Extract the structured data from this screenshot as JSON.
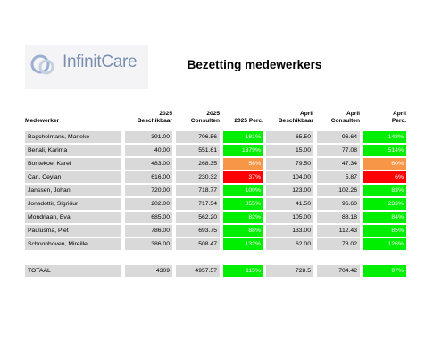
{
  "header": {
    "logo": "InfinitCare",
    "title": "Bezetting medewerkers"
  },
  "table": {
    "columns": [
      "Medewerker",
      "2025\nBeschikbaar",
      "2025\nConsulten",
      "2025 Perc.",
      "April\nBeschikbaar",
      "April\nConsulten",
      "April\nPerc."
    ],
    "rows": [
      [
        "Bagchelmans, Marieke",
        "391.00",
        "706.56",
        "181%",
        "65.50",
        "96.64",
        "148%"
      ],
      [
        "Benali, Karima",
        "40.00",
        "551.61",
        "1379%",
        "15.00",
        "77.08",
        "514%"
      ],
      [
        "Bontekoe, Karel",
        "483.00",
        "268.35",
        "56%",
        "79.50",
        "47.34",
        "60%"
      ],
      [
        "Can, Ceylan",
        "616.00",
        "230.32",
        "37%",
        "104.00",
        "5.87",
        "6%"
      ],
      [
        "Janssen, Johan",
        "720.00",
        "718.77",
        "100%",
        "123.00",
        "102.26",
        "83%"
      ],
      [
        "Jonsdottir, Sigriður",
        "202.00",
        "717.54",
        "355%",
        "41.50",
        "96.60",
        "233%"
      ],
      [
        "Mondriaan, Eva",
        "685.00",
        "562.20",
        "82%",
        "105.00",
        "88.18",
        "84%"
      ],
      [
        "Paulusma, Piet",
        "786.00",
        "693.75",
        "88%",
        "133.00",
        "112.43",
        "85%"
      ],
      [
        "Schoonhoven, Mireille",
        "386.00",
        "508.47",
        "132%",
        "62.00",
        "78.02",
        "126%"
      ]
    ],
    "row_colors": [
      [
        "#00ee00",
        "#00ee00"
      ],
      [
        "#00ee00",
        "#00ee00"
      ],
      [
        "#f79646",
        "#f79646"
      ],
      [
        "#ff0000",
        "#ff0000"
      ],
      [
        "#00ee00",
        "#00ee00"
      ],
      [
        "#00ee00",
        "#00ee00"
      ],
      [
        "#00ee00",
        "#00ee00"
      ],
      [
        "#00ee00",
        "#00ee00"
      ],
      [
        "#00ee00",
        "#00ee00"
      ]
    ],
    "total": [
      "TOTAAL",
      "4309",
      "4957.57",
      "115%",
      "728.5",
      "704.42",
      "97%"
    ],
    "total_colors": [
      "#00ee00",
      "#00ee00"
    ]
  }
}
